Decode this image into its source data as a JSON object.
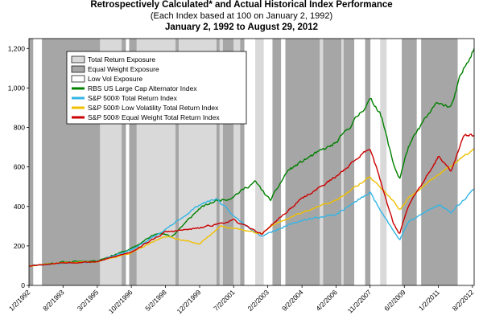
{
  "chart_data": {
    "type": "line",
    "title": "Retrospectively Calculated* and Actual Historical Index Performance",
    "subtitle": "(Each Index based at 100 on January 2, 1992)",
    "date_range": "January 2, 1992 to August 29, 2012",
    "ylim": [
      0,
      1250
    ],
    "yticks": [
      0,
      200,
      400,
      600,
      800,
      "1,000",
      "1,200"
    ],
    "x_start_year": 1992.0,
    "x_end_year": 2012.66,
    "xtick_labels": [
      "1/2/1992",
      "8/2/1993",
      "3/2/1995",
      "10/2/1996",
      "5/2/1998",
      "12/2/1999",
      "7/2/2001",
      "2/2/2003",
      "9/2/2004",
      "4/2/2006",
      "11/2/2007",
      "6/2/2009",
      "1/2/2011",
      "8/2/2012"
    ],
    "xtick_years": [
      1992.0,
      1993.58,
      1995.17,
      1996.75,
      1998.33,
      1999.92,
      2001.5,
      2003.08,
      2004.67,
      2006.25,
      2007.83,
      2009.42,
      2011.0,
      2012.58
    ],
    "legend": [
      {
        "label": "Total Return Exposure",
        "kind": "swatch",
        "color": "#d9d9d9"
      },
      {
        "label": "Equal Weight Exposure",
        "kind": "swatch",
        "color": "#a6a6a6"
      },
      {
        "label": "Low Vol Exposure",
        "kind": "swatch",
        "color": "#ffffff"
      },
      {
        "label": "RBS US Large Cap Alternator Index",
        "kind": "line",
        "color": "#008000"
      },
      {
        "label": "S&P 500® Total Return Index",
        "kind": "line",
        "color": "#33b5e5"
      },
      {
        "label": "S&P 500® Low Volatility Total Return Index",
        "kind": "line",
        "color": "#f0c000"
      },
      {
        "label": "S&P 500® Equal Weight Total Return Index",
        "kind": "line",
        "color": "#cc0000"
      }
    ],
    "regimes": [
      [
        "EW",
        1992.0,
        1992.2
      ],
      [
        "LV",
        1992.2,
        1992.6
      ],
      [
        "EW",
        1992.6,
        1995.3
      ],
      [
        "TR",
        1995.3,
        1996.3
      ],
      [
        "EW",
        1996.3,
        1996.5
      ],
      [
        "LV",
        1996.5,
        1996.65
      ],
      [
        "EW",
        1996.65,
        1997.0
      ],
      [
        "TR",
        1997.0,
        1998.8
      ],
      [
        "EW",
        1998.8,
        1998.95
      ],
      [
        "TR",
        1998.95,
        2000.7
      ],
      [
        "EW",
        2000.7,
        2000.85
      ],
      [
        "TR",
        2000.85,
        2001.0
      ],
      [
        "EW",
        2001.0,
        2001.5
      ],
      [
        "TR",
        2001.5,
        2001.8
      ],
      [
        "EW",
        2001.8,
        2002.0
      ],
      [
        "LV",
        2002.0,
        2002.5
      ],
      [
        "TR",
        2002.5,
        2002.9
      ],
      [
        "LV",
        2002.9,
        2003.3
      ],
      [
        "EW",
        2003.3,
        2003.7
      ],
      [
        "LV",
        2003.7,
        2003.9
      ],
      [
        "EW",
        2003.9,
        2005.5
      ],
      [
        "TR",
        2005.5,
        2005.65
      ],
      [
        "EW",
        2005.65,
        2006.5
      ],
      [
        "TR",
        2006.5,
        2006.6
      ],
      [
        "EW",
        2006.6,
        2007.1
      ],
      [
        "LV",
        2007.1,
        2007.6
      ],
      [
        "EW",
        2007.6,
        2007.85
      ],
      [
        "LV",
        2007.85,
        2008.3
      ],
      [
        "TR",
        2008.3,
        2008.6
      ],
      [
        "LV",
        2008.6,
        2009.3
      ],
      [
        "EW",
        2009.3,
        2010.0
      ],
      [
        "LV",
        2010.0,
        2010.2
      ],
      [
        "EW",
        2010.2,
        2011.9
      ],
      [
        "LV",
        2011.9,
        2012.66
      ]
    ],
    "series": [
      {
        "name": "RBS US Large Cap Alternator Index",
        "color": "#008000",
        "seed": 11,
        "vol": 6,
        "anchors": [
          [
            1992.0,
            100
          ],
          [
            1993.58,
            118
          ],
          [
            1995.17,
            125
          ],
          [
            1996.75,
            185
          ],
          [
            1998.0,
            270
          ],
          [
            1998.6,
            245
          ],
          [
            1999.92,
            390
          ],
          [
            2000.7,
            430
          ],
          [
            2001.3,
            440
          ],
          [
            2002.5,
            525
          ],
          [
            2003.2,
            430
          ],
          [
            2004.0,
            580
          ],
          [
            2005.0,
            650
          ],
          [
            2006.25,
            720
          ],
          [
            2007.0,
            820
          ],
          [
            2007.83,
            940
          ],
          [
            2008.3,
            880
          ],
          [
            2008.9,
            620
          ],
          [
            2009.2,
            540
          ],
          [
            2009.6,
            700
          ],
          [
            2010.3,
            830
          ],
          [
            2011.0,
            930
          ],
          [
            2011.6,
            900
          ],
          [
            2012.0,
            1050
          ],
          [
            2012.66,
            1210
          ]
        ]
      },
      {
        "name": "S&P 500® Total Return Index",
        "color": "#33b5e5",
        "seed": 23,
        "vol": 5,
        "anchors": [
          [
            1992.0,
            100
          ],
          [
            1993.58,
            112
          ],
          [
            1995.17,
            120
          ],
          [
            1996.75,
            180
          ],
          [
            1998.33,
            280
          ],
          [
            1999.92,
            410
          ],
          [
            2000.7,
            440
          ],
          [
            2001.5,
            350
          ],
          [
            2002.8,
            250
          ],
          [
            2003.2,
            270
          ],
          [
            2004.67,
            330
          ],
          [
            2006.25,
            360
          ],
          [
            2007.83,
            470
          ],
          [
            2008.9,
            280
          ],
          [
            2009.2,
            230
          ],
          [
            2009.6,
            320
          ],
          [
            2011.0,
            410
          ],
          [
            2011.6,
            370
          ],
          [
            2012.66,
            490
          ]
        ]
      },
      {
        "name": "S&P 500® Low Volatility Total Return Index",
        "color": "#f0c000",
        "seed": 37,
        "vol": 4,
        "anchors": [
          [
            1992.0,
            100
          ],
          [
            1993.58,
            115
          ],
          [
            1995.17,
            120
          ],
          [
            1996.75,
            165
          ],
          [
            1998.33,
            250
          ],
          [
            1999.92,
            210
          ],
          [
            2000.9,
            300
          ],
          [
            2001.5,
            290
          ],
          [
            2002.8,
            260
          ],
          [
            2003.2,
            300
          ],
          [
            2004.67,
            370
          ],
          [
            2006.25,
            430
          ],
          [
            2007.83,
            550
          ],
          [
            2008.9,
            430
          ],
          [
            2009.2,
            380
          ],
          [
            2009.6,
            440
          ],
          [
            2011.0,
            560
          ],
          [
            2012.66,
            690
          ]
        ]
      },
      {
        "name": "S&P 500® Equal Weight Total Return Index",
        "color": "#cc0000",
        "seed": 53,
        "vol": 5,
        "anchors": [
          [
            1992.0,
            100
          ],
          [
            1993.58,
            115
          ],
          [
            1995.17,
            120
          ],
          [
            1996.75,
            170
          ],
          [
            1998.33,
            270
          ],
          [
            1999.92,
            290
          ],
          [
            2001.5,
            330
          ],
          [
            2002.8,
            260
          ],
          [
            2003.2,
            300
          ],
          [
            2004.67,
            440
          ],
          [
            2006.25,
            550
          ],
          [
            2007.83,
            700
          ],
          [
            2008.9,
            320
          ],
          [
            2009.2,
            260
          ],
          [
            2009.6,
            400
          ],
          [
            2011.0,
            650
          ],
          [
            2011.6,
            580
          ],
          [
            2012.2,
            760
          ],
          [
            2012.66,
            760
          ]
        ]
      }
    ]
  }
}
